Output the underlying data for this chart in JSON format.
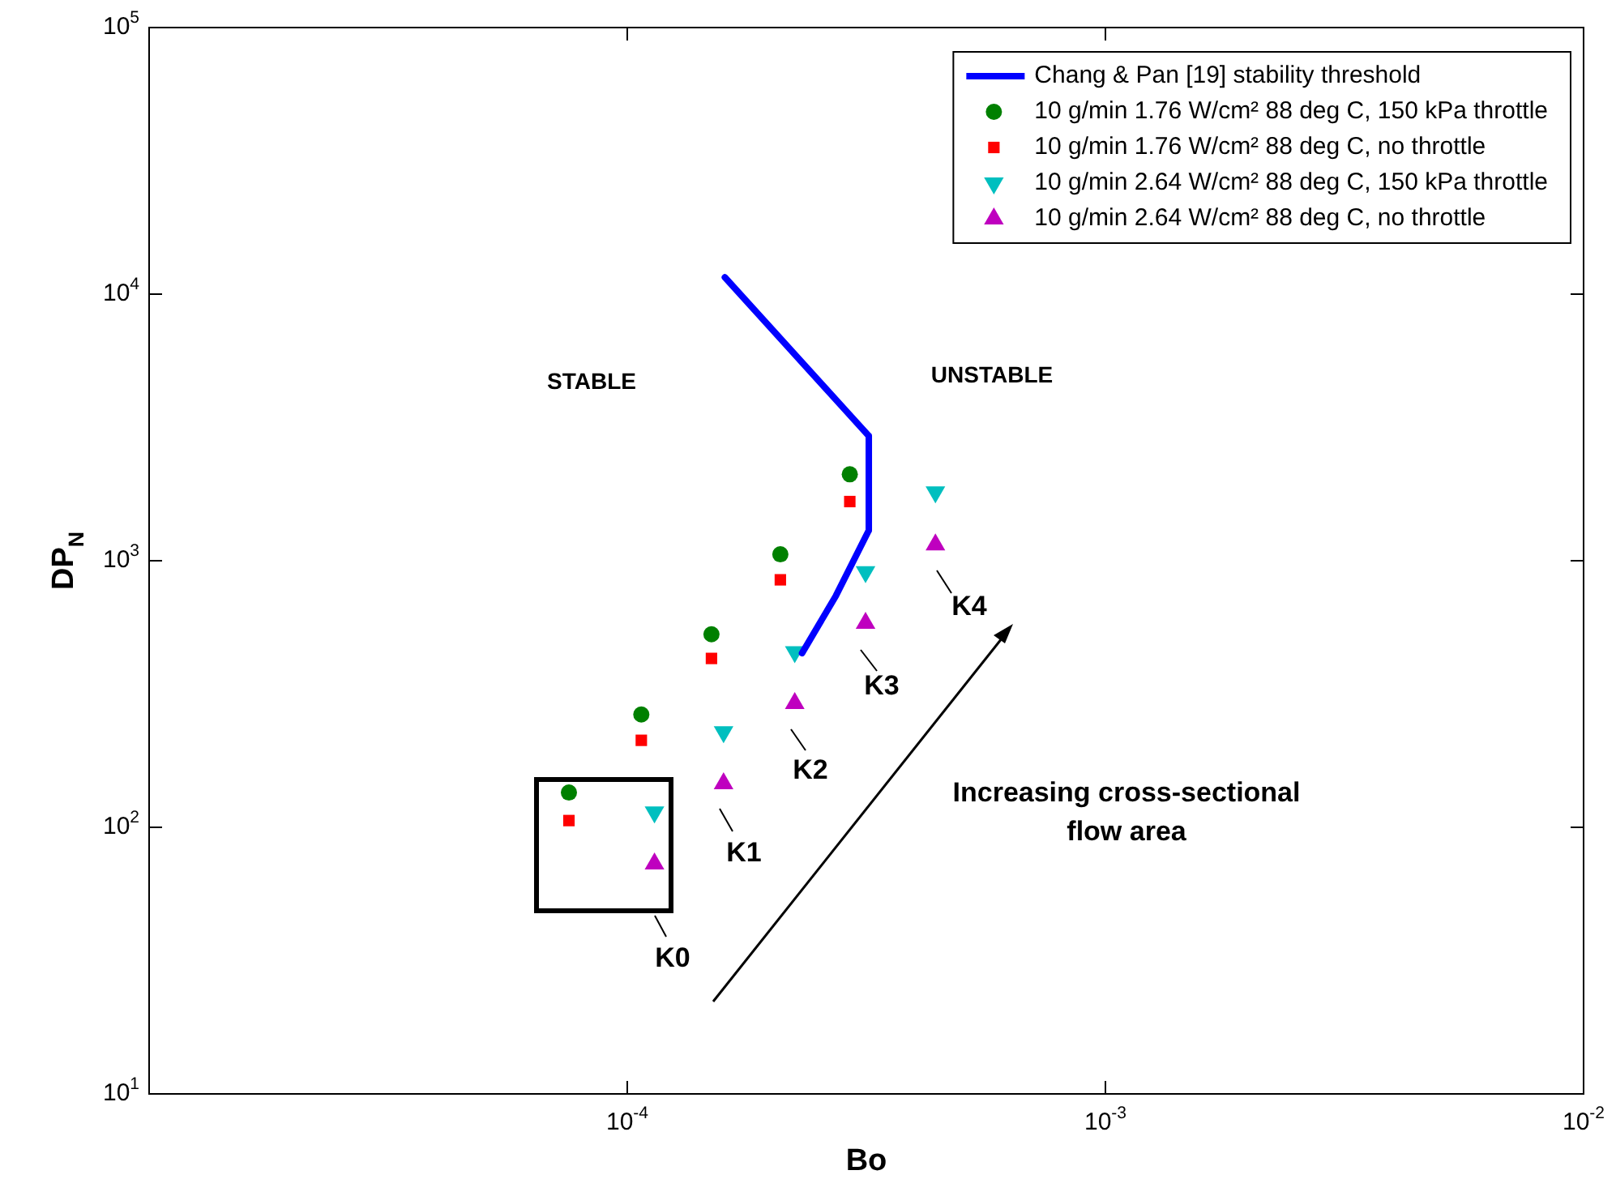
{
  "chart_data": {
    "type": "scatter",
    "xlabel": "Bo",
    "ylabel": "DP$_{N}$",
    "log": "xy",
    "xlim": [
      1e-05,
      0.01
    ],
    "xticks": [
      {
        "value": 1e-05,
        "label": null
      },
      {
        "value": 0.0001,
        "label": "10$^{-4}$"
      },
      {
        "value": 0.001,
        "label": "10$^{-3}$"
      },
      {
        "value": 0.01,
        "label": "10$^{-2}$"
      }
    ],
    "ylim": [
      10,
      100000
    ],
    "yticks": [
      {
        "value": 10,
        "label": "10$^{1}$"
      },
      {
        "value": 100,
        "label": "10$^{2}$"
      },
      {
        "value": 1000,
        "label": "10$^{3}$"
      },
      {
        "value": 10000,
        "label": "10$^{4}$"
      },
      {
        "value": 100000,
        "label": "10$^{5}$"
      }
    ],
    "grid": false,
    "legend": "top right",
    "series": [
      {
        "name": "Chang & Pan [19] stability threshold",
        "type": "line",
        "color": "#0000ff",
        "marker": "none",
        "line_style": "solid",
        "x": [
          0.00016,
          0.00032,
          0.00032,
          0.000273,
          0.000232
        ],
        "values": [
          11560,
          2938,
          1300,
          738,
          450
        ]
      },
      {
        "name": "10 g/min 1.76 W/cm² 88 deg C, 150 kPa throttle",
        "color": "#008000",
        "marker": "circle",
        "x": [
          7.55e-05,
          0.000107,
          0.00015,
          0.000209,
          0.000292
        ],
        "values": [
          135,
          265,
          530,
          1057,
          2110
        ]
      },
      {
        "name": "10 g/min 1.76 W/cm² 88 deg C, no throttle",
        "color": "#ff0000",
        "marker": "square",
        "x": [
          7.55e-05,
          0.000107,
          0.00015,
          0.000209,
          0.000292
        ],
        "values": [
          106,
          212,
          430,
          848,
          1667
        ]
      },
      {
        "name": "10 g/min 2.64 W/cm² 88 deg C, 150 kPa throttle",
        "color": "#00bfbf",
        "marker": "triangle-down",
        "x": [
          0.000114,
          0.000159,
          0.000224,
          0.000315,
          0.000441
        ],
        "values": [
          114,
          228,
          455,
          908,
          1811
        ]
      },
      {
        "name": "10 g/min 2.64 W/cm² 88 deg C, no throttle",
        "color": "#bf00bf",
        "marker": "triangle",
        "x": [
          0.000114,
          0.000159,
          0.000224,
          0.000315,
          0.000441
        ],
        "values": [
          73,
          146,
          292,
          583,
          1148
        ]
      }
    ],
    "annotations": [
      "STABLE",
      "UNSTABLE",
      "K0",
      "K1",
      "K2",
      "K3",
      "K4",
      "Increasing cross-sectional\nflow area"
    ]
  }
}
